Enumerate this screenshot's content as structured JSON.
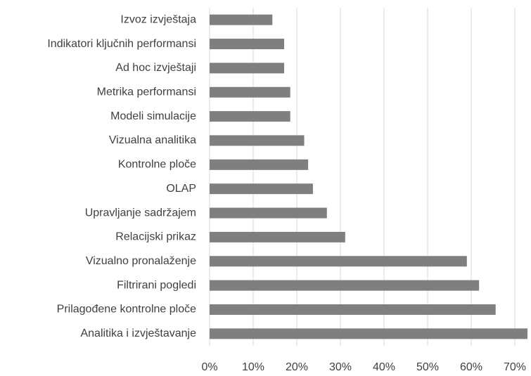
{
  "chart_data": {
    "type": "bar",
    "orientation": "horizontal",
    "categories": [
      "Izvoz izvještaja",
      "Indikatori ključnih performansi",
      "Ad hoc izvještaji",
      "Metrika performansi",
      "Modeli simulacije",
      "Vizualna analitika",
      "Kontrolne ploče",
      "OLAP",
      "Upravljanje sadržajem",
      "Relacijski prikaz",
      "Vizualno pronalaženje",
      "Filtrirani pogledi",
      "Prilagođene kontrolne ploče",
      "Analitika i izvještavanje"
    ],
    "values": [
      14.4,
      17.1,
      17.1,
      18.5,
      18.5,
      21.7,
      22.6,
      23.7,
      26.9,
      31.1,
      59.0,
      61.8,
      65.6,
      72.9
    ],
    "color": "#7f7f7f",
    "xlim": [
      0,
      73
    ],
    "xticks": [
      {
        "value": 0,
        "label": "0%"
      },
      {
        "value": 10,
        "label": "10%"
      },
      {
        "value": 20,
        "label": "20%"
      },
      {
        "value": 30,
        "label": "30%"
      },
      {
        "value": 40,
        "label": "40%"
      },
      {
        "value": 50,
        "label": "50%"
      },
      {
        "value": 60,
        "label": "60%"
      },
      {
        "value": 70,
        "label": "70%"
      }
    ],
    "grid": true
  }
}
